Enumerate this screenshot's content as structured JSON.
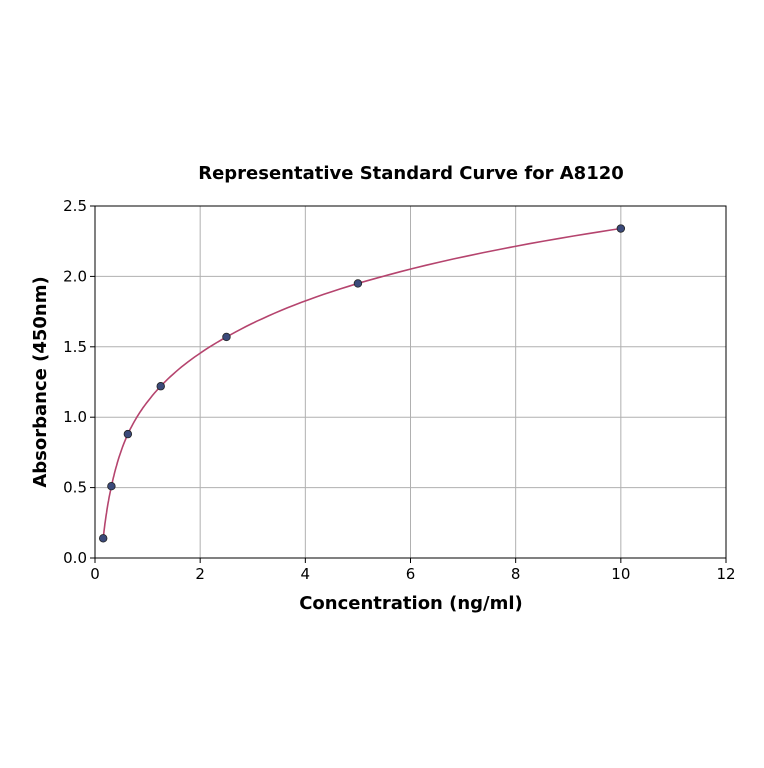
{
  "chart_data": {
    "type": "line",
    "title": "Representative Standard Curve for A8120",
    "xlabel": "Concentration (ng/ml)",
    "ylabel": "Absorbance (450nm)",
    "xlim": [
      0,
      12
    ],
    "ylim": [
      0,
      2.5
    ],
    "xticks": [
      0,
      2,
      4,
      6,
      8,
      10,
      12
    ],
    "yticks": [
      "0.0",
      "0.5",
      "1.0",
      "1.5",
      "2.0",
      "2.5"
    ],
    "grid": true,
    "series": [
      {
        "x": [
          0.156,
          0.312,
          0.625,
          1.25,
          2.5,
          5,
          10
        ],
        "y": [
          0.14,
          0.51,
          0.88,
          1.22,
          1.57,
          1.95,
          2.34
        ],
        "marker_color": "#3b4a7a",
        "line_color": "#b5446e"
      }
    ]
  }
}
